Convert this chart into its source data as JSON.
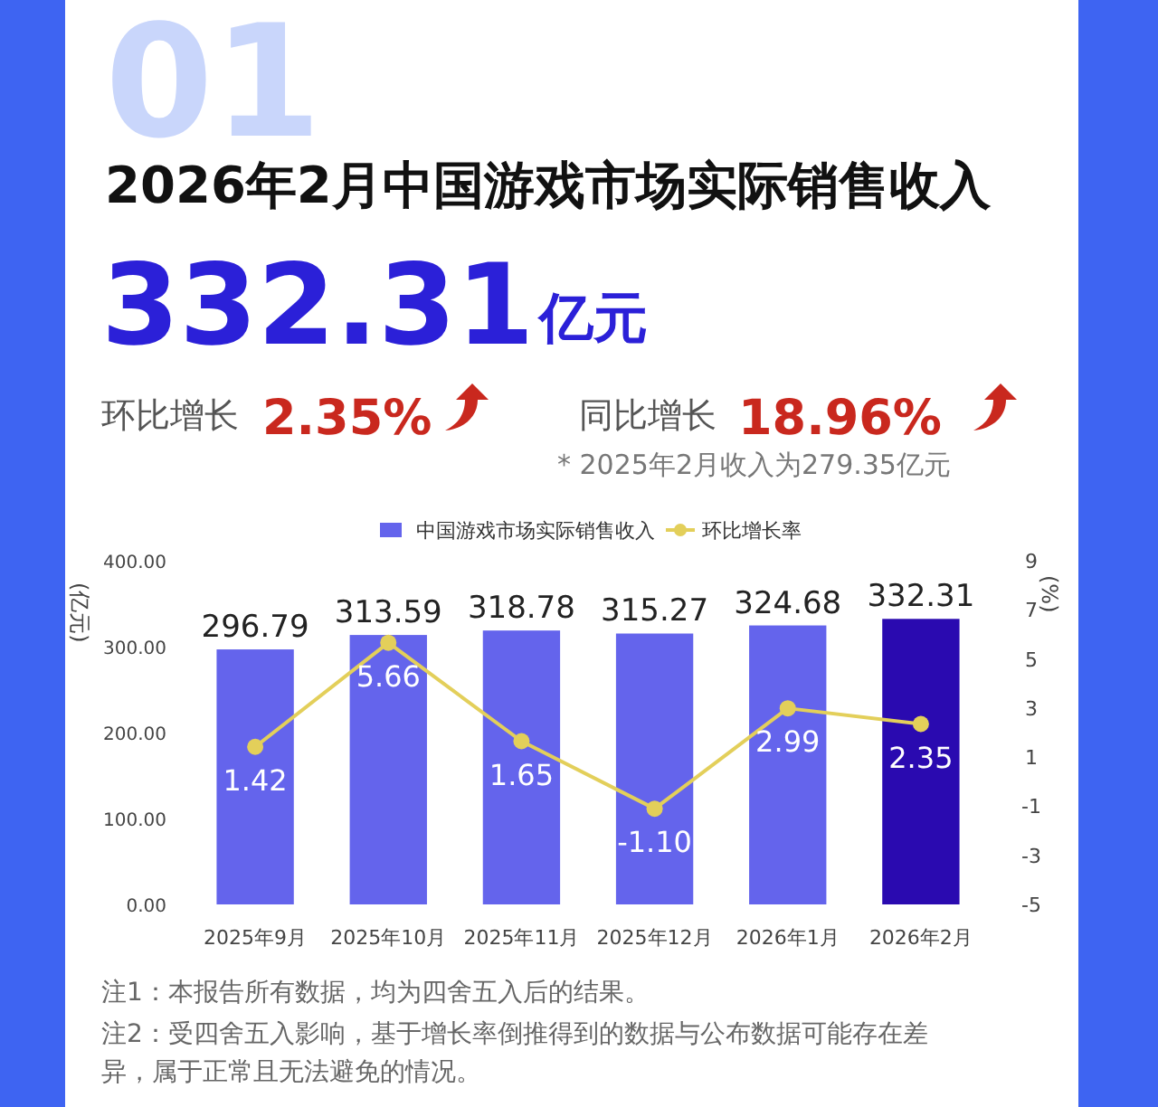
{
  "chart_data": {
    "type": "bar",
    "title": "2026年2月中国游戏市场实际销售收入",
    "annotations": [
      "01",
      "332.31",
      "亿元",
      "环比增长",
      "2.35%",
      "同比增长",
      "18.96%",
      "* 2025年2月收入为279.35亿元",
      "注1：本报告所有数据，均为四舍五入后的结果。",
      "注2：受四舍五入影响，基于增长率倒推得到的数据与公布数据可能存在差异，属于正常且无法避免的情况。"
    ],
    "categories": [
      "2025年9月",
      "2025年10月",
      "2025年11月",
      "2025年12月",
      "2026年1月",
      "2026年2月"
    ],
    "series": [
      {
        "name": "中国游戏市场实际销售收入",
        "color": "#6464ec",
        "colors": [
          "#6464ec",
          "#6464ec",
          "#6464ec",
          "#6464ec",
          "#6464ec",
          "#2a0ab0"
        ],
        "values": [
          296.79,
          313.59,
          318.78,
          315.27,
          324.68,
          332.31
        ]
      },
      {
        "name": "环比增长率",
        "type": "line",
        "axis": "y2",
        "color": "#e3cf5a",
        "marker": "circle",
        "values": [
          1.42,
          5.66,
          1.65,
          -1.1,
          2.99,
          2.35
        ],
        "value_labels": [
          "1.42",
          "5.66",
          "1.65",
          "-1.10",
          "2.99",
          "2.35"
        ]
      }
    ],
    "data_labels": true,
    "ylabel": "(亿元)",
    "y2label": "(%)",
    "ylim": [
      0,
      400
    ],
    "yticks": [
      {
        "value": 0,
        "label": "0.00"
      },
      {
        "value": 100,
        "label": "100.00"
      },
      {
        "value": 200,
        "label": "200.00"
      },
      {
        "value": 300,
        "label": "300.00"
      },
      {
        "value": 400,
        "label": "400.00"
      }
    ],
    "y2lim": [
      -5,
      9
    ],
    "y2ticks": [
      -5,
      -3,
      -1,
      1,
      3,
      5,
      7,
      9
    ],
    "legend": "top",
    "grid": false
  }
}
